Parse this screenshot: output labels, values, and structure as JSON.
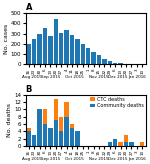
{
  "chart_data": [
    {
      "type": "bar",
      "title": "A",
      "categories": [
        "16",
        "23",
        "30",
        "6",
        "13",
        "20",
        "27",
        "4",
        "11",
        "18",
        "25",
        "1",
        "8",
        "15",
        "22",
        "29",
        "6",
        "13",
        "20",
        "27",
        "3",
        "10"
      ],
      "values": [
        195,
        250,
        300,
        350,
        280,
        440,
        305,
        335,
        285,
        250,
        200,
        160,
        120,
        90,
        50,
        30,
        12,
        8,
        5,
        4,
        2,
        1
      ],
      "y_label": "No. cases",
      "ylim": [
        0,
        500
      ],
      "yticks": [
        0,
        100,
        200,
        300,
        400,
        500
      ],
      "annotations": [
        {
          "text": "Aug 2015",
          "x": 0.5
        },
        {
          "text": "Sep 2015",
          "x": 4.0
        },
        {
          "text": "Oct 2015",
          "x": 8.5
        },
        {
          "text": "Nov 2015",
          "x": 13.0
        },
        {
          "text": "Dec 2015",
          "x": 16.5
        },
        {
          "text": "Jan 2016",
          "x": 20.0
        }
      ]
    },
    {
      "type": "bar",
      "title": "B",
      "stacked": true,
      "categories": [
        "16",
        "23",
        "30",
        "6",
        "13",
        "20",
        "27",
        "4",
        "11",
        "18",
        "25",
        "1",
        "8",
        "15",
        "22",
        "29",
        "6",
        "13",
        "20",
        "27",
        "3",
        "10"
      ],
      "series": [
        {
          "name": "Community deaths",
          "values": [
            4,
            3,
            10,
            6,
            5,
            7,
            4,
            8,
            5,
            4,
            0,
            0,
            0,
            0,
            0,
            1,
            2,
            0,
            1,
            1,
            0,
            0
          ]
        },
        {
          "name": "CTC deaths",
          "values": [
            1,
            0,
            0,
            4,
            0,
            6,
            4,
            4,
            1,
            0,
            0,
            0,
            0,
            0,
            0,
            0,
            0,
            1,
            2,
            0,
            0,
            1
          ]
        }
      ],
      "y_label": "No. deaths",
      "ylim": [
        0,
        14
      ],
      "yticks": [
        0,
        2,
        4,
        6,
        8,
        10,
        12,
        14
      ],
      "legend": "upper right",
      "annotations": [
        {
          "text": "Aug 2015",
          "x": 0.5
        },
        {
          "text": "Sep 2015",
          "x": 4.0
        },
        {
          "text": "Oct 2015",
          "x": 8.5
        },
        {
          "text": "Nov 2015",
          "x": 13.0
        },
        {
          "text": "Dec 2015",
          "x": 16.5
        },
        {
          "text": "Jan 2016",
          "x": 20.0
        }
      ]
    }
  ]
}
